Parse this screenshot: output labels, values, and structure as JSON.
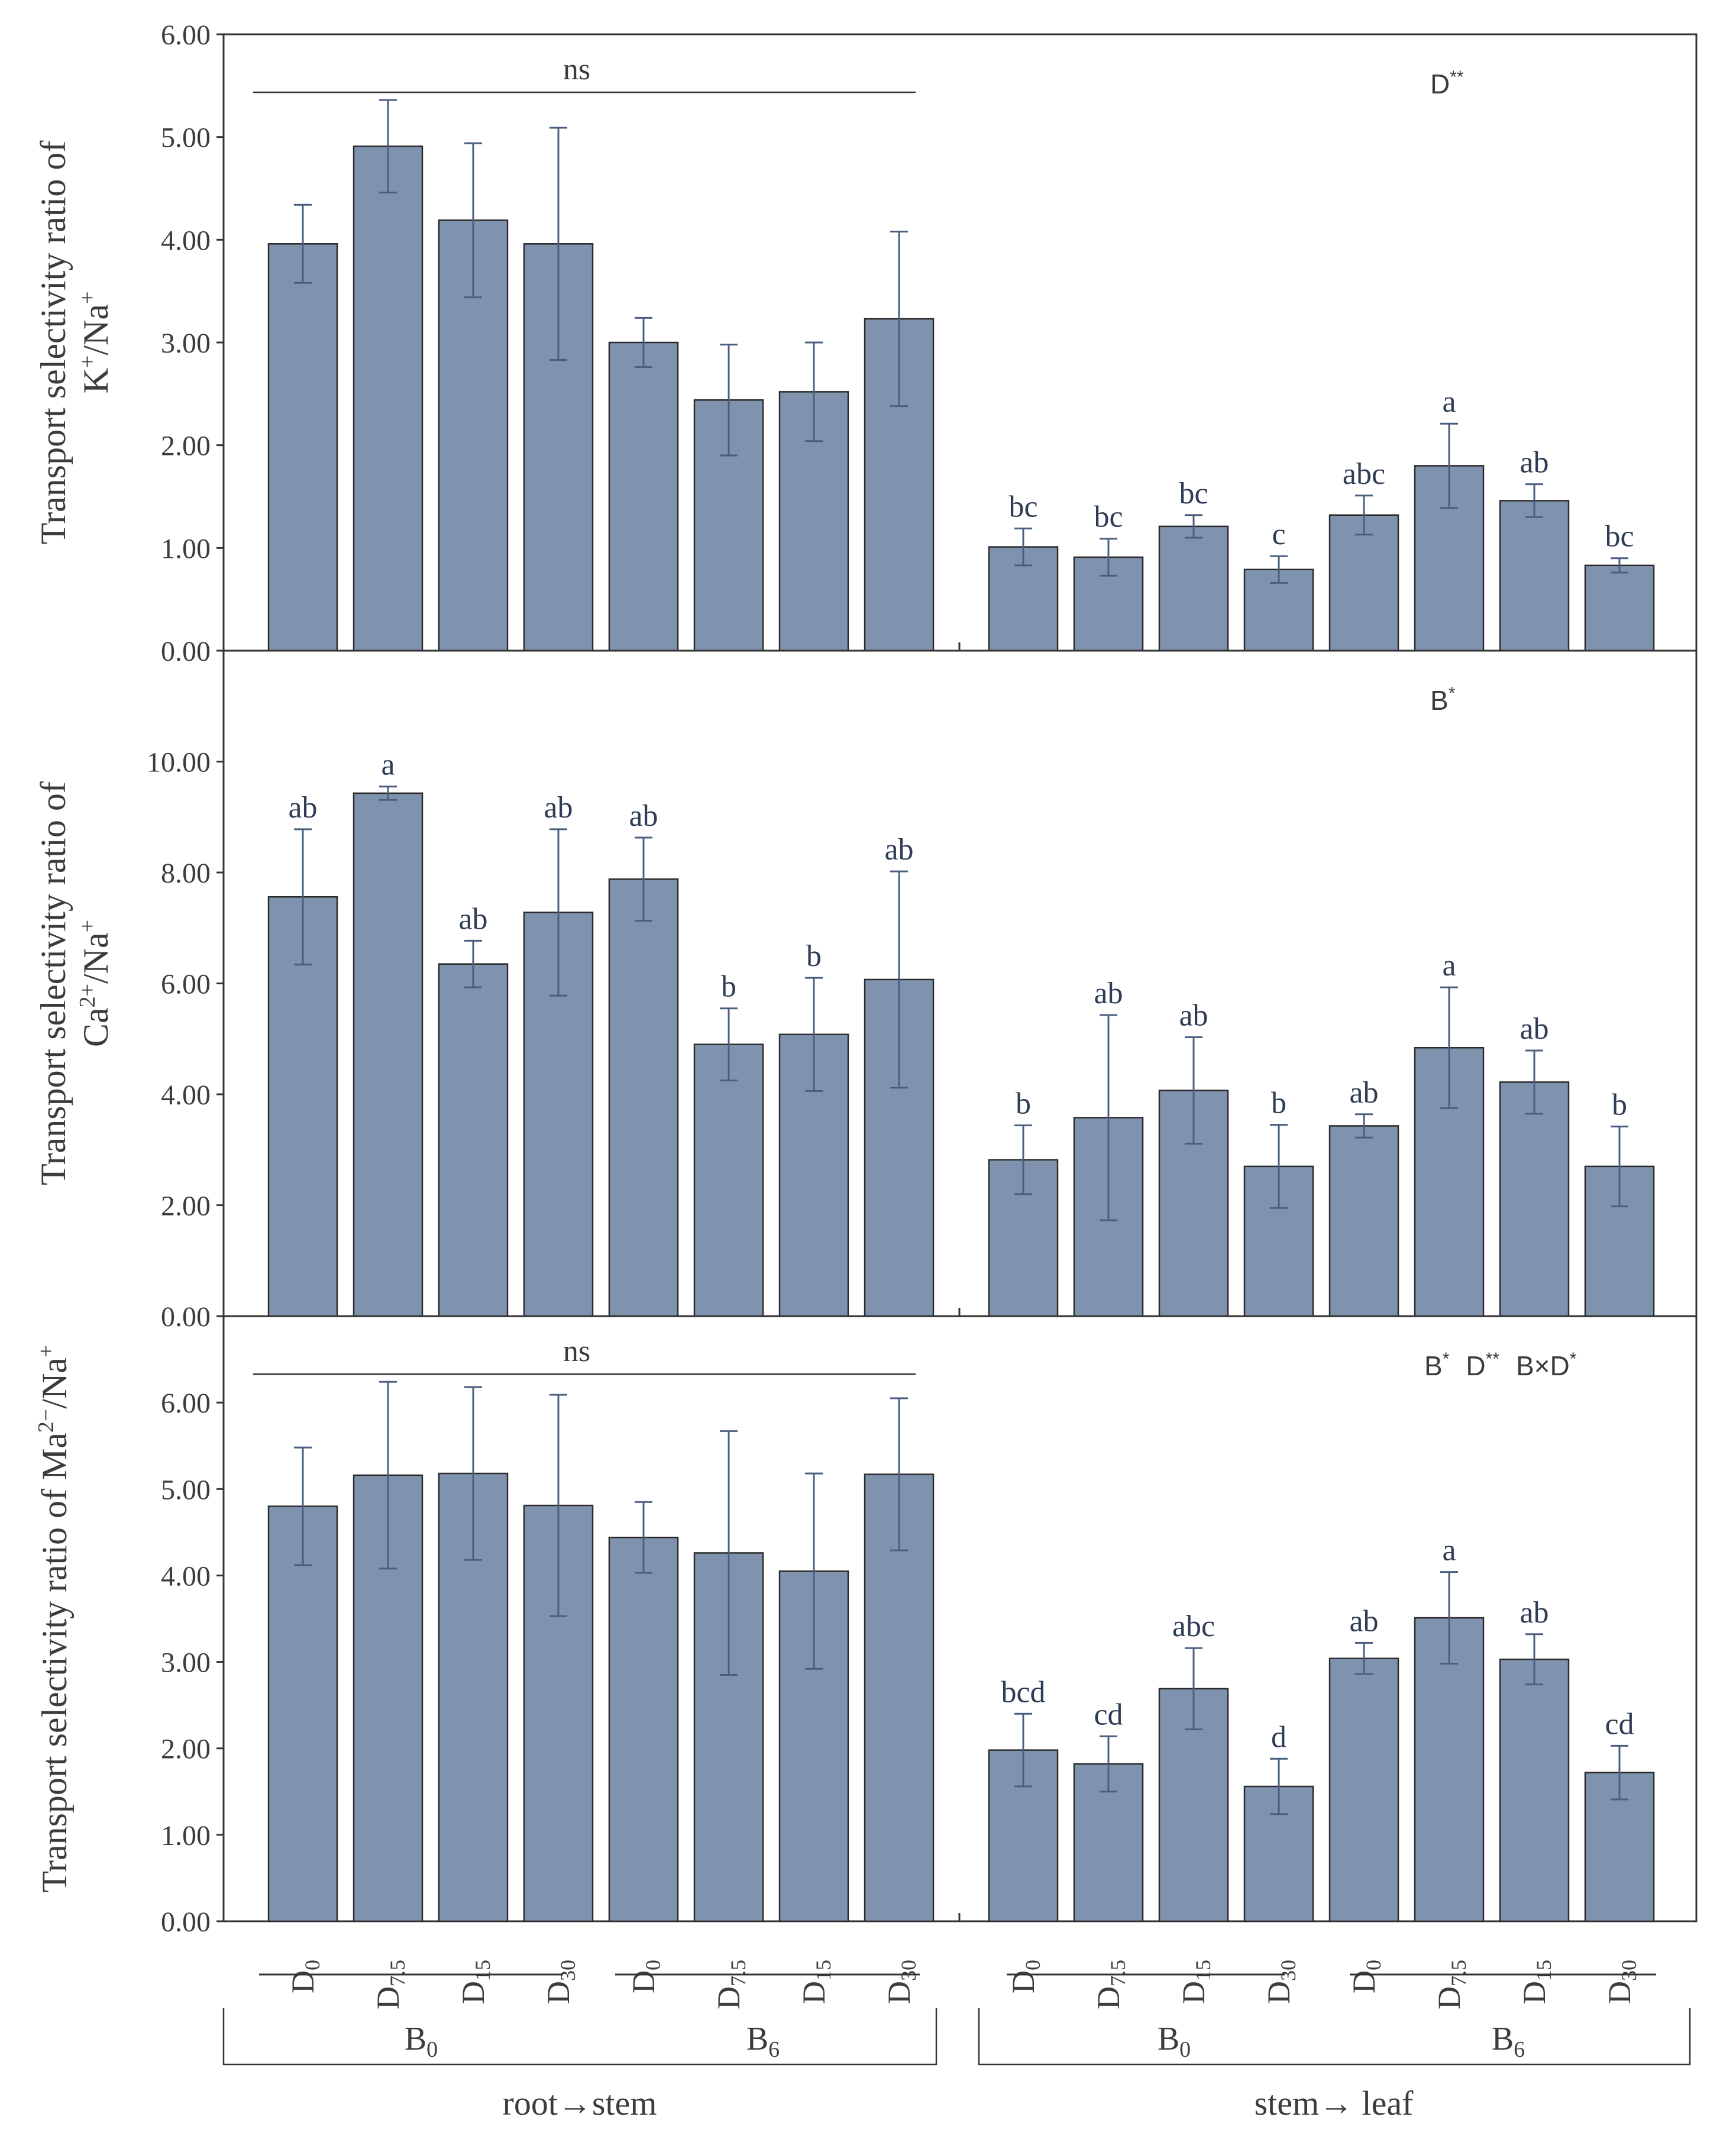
{
  "colors": {
    "bar": "#8093AE",
    "bar_edge": "#2B2B2B",
    "error_bar": "#4A5F80",
    "axis": "#333333",
    "text": "#3C3C3C",
    "letters": "#2E3D55"
  },
  "chart_data": [
    {
      "type": "bar",
      "id": "k",
      "ylabel_line1": "Transport selectivity ratio of",
      "ylabel_line2_base": "K",
      "ylabel_line2_sup1": "+",
      "ylabel_line2_mid": "/Na",
      "ylabel_line2_sup2": "+",
      "ylim": [
        0,
        6
      ],
      "yticks": [
        "0.00",
        "1.00",
        "2.00",
        "3.00",
        "4.00",
        "5.00",
        "6.00"
      ],
      "ytick_values": [
        0,
        1,
        2,
        3,
        4,
        5,
        6
      ],
      "group_annotation": {
        "text": "ns",
        "group": "root→stem"
      },
      "significance": {
        "parts": [
          {
            "base": "D",
            "sup": "**"
          }
        ]
      },
      "groups": [
        {
          "name": "root→stem",
          "values": [
            3.96,
            4.91,
            4.19,
            3.96,
            3.0,
            2.44,
            2.52,
            3.23
          ],
          "errors": [
            0.38,
            0.45,
            0.75,
            1.13,
            0.24,
            0.54,
            0.48,
            0.85
          ],
          "letters": [
            "",
            "",
            "",
            "",
            "",
            "",
            "",
            ""
          ]
        },
        {
          "name": "stem→leaf",
          "values": [
            1.01,
            0.91,
            1.21,
            0.79,
            1.32,
            1.8,
            1.46,
            0.83
          ],
          "errors": [
            0.18,
            0.18,
            0.11,
            0.13,
            0.19,
            0.41,
            0.16,
            0.07
          ],
          "letters": [
            "bc",
            "bc",
            "bc",
            "c",
            "abc",
            "a",
            "ab",
            "bc"
          ]
        }
      ]
    },
    {
      "type": "bar",
      "id": "ca",
      "ylabel_line1": "Transport selectivity ratio of",
      "ylabel_line2_base": "Ca",
      "ylabel_line2_sup1": "2+",
      "ylabel_line2_mid": "/Na",
      "ylabel_line2_sup2": "+",
      "ylim": [
        0,
        12
      ],
      "yticks": [
        "0.00",
        "2.00",
        "4.00",
        "6.00",
        "8.00",
        "10.00"
      ],
      "ytick_values": [
        0,
        2,
        4,
        6,
        8,
        10
      ],
      "significance": {
        "parts": [
          {
            "base": "B",
            "sup": "*"
          }
        ]
      },
      "groups": [
        {
          "name": "root→stem",
          "values": [
            7.56,
            9.43,
            6.35,
            7.28,
            7.88,
            4.9,
            5.08,
            6.07
          ],
          "errors": [
            1.22,
            0.12,
            0.42,
            1.5,
            0.75,
            0.65,
            1.02,
            1.95
          ],
          "letters": [
            "ab",
            "a",
            "ab",
            "ab",
            "ab",
            "b",
            "b",
            "ab"
          ]
        },
        {
          "name": "stem→leaf",
          "values": [
            2.82,
            3.58,
            4.07,
            2.7,
            3.43,
            4.84,
            4.22,
            2.7
          ],
          "errors": [
            0.62,
            1.85,
            0.96,
            0.75,
            0.21,
            1.09,
            0.57,
            0.72
          ],
          "letters": [
            "b",
            "ab",
            "ab",
            "b",
            "ab",
            "a",
            "ab",
            "b"
          ]
        }
      ]
    },
    {
      "type": "bar",
      "id": "mg",
      "ylabel_line1": "Transport selectivity ratio of Ma",
      "ylabel_line1_sup1": "2−",
      "ylabel_line1_mid": "/Na",
      "ylabel_line1_sup2": "+",
      "ylim": [
        0,
        7
      ],
      "yticks": [
        "0.00",
        "1.00",
        "2.00",
        "3.00",
        "4.00",
        "5.00",
        "6.00"
      ],
      "ytick_values": [
        0,
        1,
        2,
        3,
        4,
        5,
        6
      ],
      "group_annotation": {
        "text": "ns",
        "group": "root→stem"
      },
      "significance": {
        "parts": [
          {
            "base": "B",
            "sup": "*"
          },
          {
            "base": "D",
            "sup": "**"
          },
          {
            "base": "B×D",
            "sup": "*"
          }
        ]
      },
      "groups": [
        {
          "name": "root→stem",
          "values": [
            4.8,
            5.16,
            5.18,
            4.81,
            4.44,
            4.26,
            4.05,
            5.17
          ],
          "errors": [
            0.68,
            1.08,
            1.0,
            1.28,
            0.41,
            1.41,
            1.13,
            0.88
          ],
          "letters": [
            "",
            "",
            "",
            "",
            "",
            "",
            "",
            ""
          ]
        },
        {
          "name": "stem→leaf",
          "values": [
            1.98,
            1.82,
            2.69,
            1.56,
            3.04,
            3.51,
            3.03,
            1.72
          ],
          "errors": [
            0.42,
            0.32,
            0.47,
            0.32,
            0.18,
            0.53,
            0.29,
            0.31
          ],
          "letters": [
            "bcd",
            "cd",
            "abc",
            "d",
            "ab",
            "a",
            "ab",
            "cd"
          ]
        }
      ]
    }
  ],
  "x_axis": {
    "treatments": [
      {
        "base": "D",
        "sub": "0"
      },
      {
        "base": "D",
        "sub": "7.5"
      },
      {
        "base": "D",
        "sub": "15"
      },
      {
        "base": "D",
        "sub": "30"
      },
      {
        "base": "D",
        "sub": "0"
      },
      {
        "base": "D",
        "sub": "7.5"
      },
      {
        "base": "D",
        "sub": "15"
      },
      {
        "base": "D",
        "sub": "30"
      }
    ],
    "b_groups": [
      {
        "base": "B",
        "sub": "0"
      },
      {
        "base": "B",
        "sub": "6"
      }
    ],
    "sections": [
      "root→stem",
      "stem→ leaf"
    ]
  }
}
